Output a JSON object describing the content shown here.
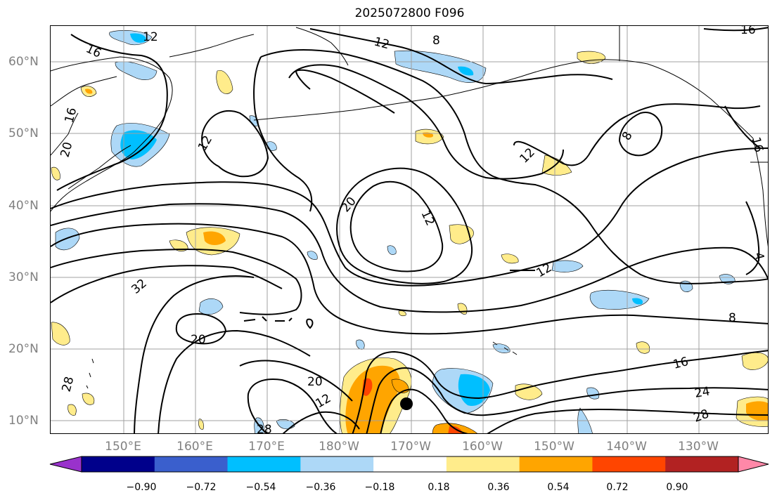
{
  "title": "2025072800 F096",
  "lat_labels": [
    "60°N",
    "50°N",
    "40°N",
    "30°N",
    "20°N",
    "10°N"
  ],
  "lon_labels": [
    "150°E",
    "160°E",
    "170°E",
    "180°W",
    "170°W",
    "160°W",
    "150°W",
    "140°W",
    "130°W"
  ],
  "contour_labels": [
    "12",
    "16",
    "8",
    "12",
    "16",
    "16",
    "20",
    "12",
    "8",
    "12",
    "20",
    "12",
    "12",
    "32",
    "20",
    "8",
    "16",
    "24",
    "28",
    "20",
    "12",
    "28",
    "28",
    "4",
    "16"
  ],
  "colorbar": {
    "tick_labels": [
      "−0.90",
      "−0.72",
      "−0.54",
      "−0.36",
      "−0.18",
      "0.18",
      "0.36",
      "0.54",
      "0.72",
      "0.90"
    ],
    "colors": [
      "#9932cc",
      "#00008b",
      "#3a5fcd",
      "#00bfff",
      "#add8f7",
      "#ffffff",
      "#ffec8b",
      "#ffa500",
      "#ff4500",
      "#b22222",
      "#ff88a8"
    ]
  },
  "colors": {
    "contour": "#000000",
    "coastline": "#000000",
    "grid": "#a0a0a0",
    "axis_label": "#808080"
  }
}
